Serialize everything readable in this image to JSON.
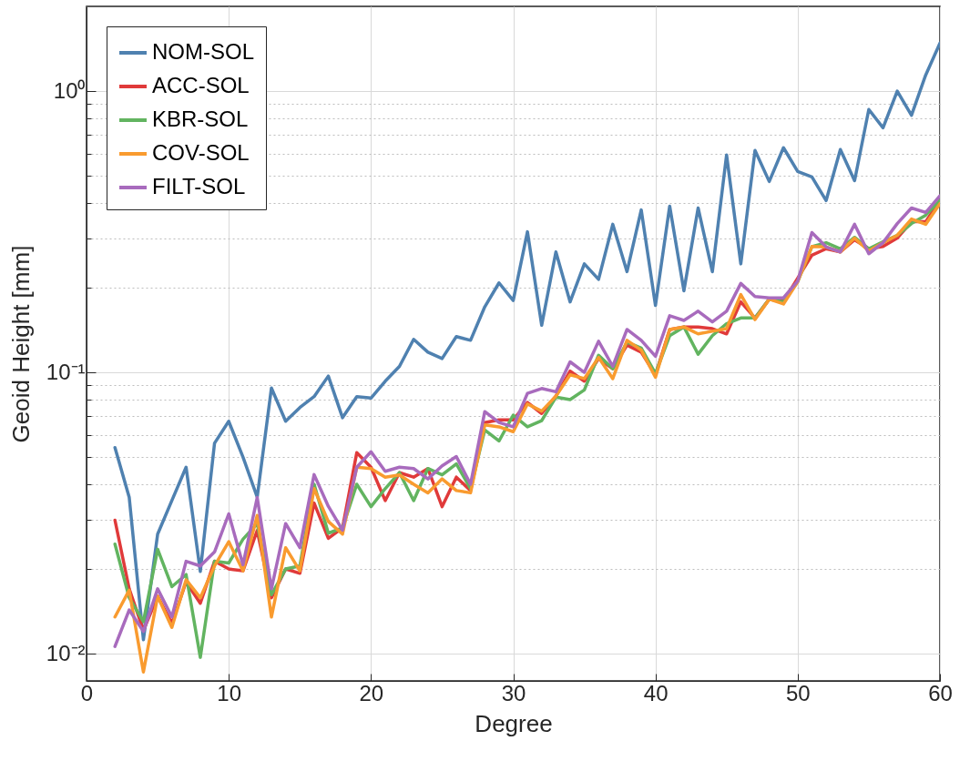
{
  "chart_data": {
    "type": "line",
    "xlabel": "Degree",
    "ylabel": "Geoid Height [mm]",
    "log": true,
    "grid": true,
    "legend": "top left",
    "x": [
      2,
      3,
      4,
      5,
      6,
      7,
      8,
      9,
      10,
      11,
      12,
      13,
      14,
      15,
      16,
      17,
      18,
      19,
      20,
      21,
      22,
      23,
      24,
      25,
      26,
      27,
      28,
      29,
      30,
      31,
      32,
      33,
      34,
      35,
      36,
      37,
      38,
      39,
      40,
      41,
      42,
      43,
      44,
      45,
      46,
      47,
      48,
      49,
      50,
      51,
      52,
      53,
      54,
      55,
      56,
      57,
      58,
      59,
      60
    ],
    "xlim": [
      0,
      60
    ],
    "xticks": [
      0,
      10,
      20,
      30,
      40,
      50,
      60
    ],
    "ylim": [
      0.008,
      2
    ],
    "yticks": [
      {
        "value": 0.01,
        "label": "10⁻²"
      },
      {
        "value": 0.02,
        "label": null
      },
      {
        "value": 0.03,
        "label": null
      },
      {
        "value": 0.04,
        "label": null
      },
      {
        "value": 0.05,
        "label": null
      },
      {
        "value": 0.06,
        "label": null
      },
      {
        "value": 0.07,
        "label": null
      },
      {
        "value": 0.08,
        "label": null
      },
      {
        "value": 0.09,
        "label": null
      },
      {
        "value": 0.1,
        "label": "10⁻¹"
      },
      {
        "value": 0.2,
        "label": null
      },
      {
        "value": 0.3,
        "label": null
      },
      {
        "value": 0.4,
        "label": null
      },
      {
        "value": 0.5,
        "label": null
      },
      {
        "value": 0.6,
        "label": null
      },
      {
        "value": 0.7,
        "label": null
      },
      {
        "value": 0.8,
        "label": null
      },
      {
        "value": 0.9,
        "label": null
      },
      {
        "value": 1,
        "label": "10⁰"
      }
    ],
    "series": [
      {
        "name": "NOM-SOL",
        "color": "#4f81b0",
        "values": [
          0.054,
          0.036,
          0.0112,
          0.0266,
          0.035,
          0.046,
          0.0196,
          0.056,
          0.067,
          0.05,
          0.036,
          0.088,
          0.067,
          0.075,
          0.082,
          0.097,
          0.069,
          0.082,
          0.081,
          0.093,
          0.105,
          0.131,
          0.118,
          0.112,
          0.134,
          0.13,
          0.171,
          0.208,
          0.18,
          0.316,
          0.147,
          0.268,
          0.178,
          0.243,
          0.214,
          0.336,
          0.228,
          0.378,
          0.173,
          0.39,
          0.195,
          0.384,
          0.228,
          0.593,
          0.243,
          0.615,
          0.477,
          0.629,
          0.518,
          0.495,
          0.408,
          0.62,
          0.48,
          0.86,
          0.74,
          1.0,
          0.82,
          1.14,
          1.48
        ]
      },
      {
        "name": "ACC-SOL",
        "color": "#e03a3a",
        "values": [
          0.0298,
          0.017,
          0.0121,
          0.016,
          0.0128,
          0.018,
          0.0151,
          0.0213,
          0.02,
          0.0197,
          0.0274,
          0.0158,
          0.02,
          0.0193,
          0.0343,
          0.0257,
          0.028,
          0.0518,
          0.046,
          0.035,
          0.044,
          0.0424,
          0.0455,
          0.0333,
          0.0424,
          0.038,
          0.0663,
          0.0678,
          0.0678,
          0.0781,
          0.0714,
          0.0823,
          0.101,
          0.093,
          0.112,
          0.103,
          0.125,
          0.118,
          0.098,
          0.142,
          0.145,
          0.145,
          0.143,
          0.137,
          0.178,
          0.156,
          0.182,
          0.179,
          0.216,
          0.261,
          0.275,
          0.268,
          0.296,
          0.275,
          0.28,
          0.3,
          0.343,
          0.343,
          0.408
        ]
      },
      {
        "name": "KBR-SOL",
        "color": "#62b460",
        "values": [
          0.0245,
          0.0158,
          0.013,
          0.0235,
          0.0173,
          0.0191,
          0.0097,
          0.0213,
          0.021,
          0.0255,
          0.029,
          0.0162,
          0.02,
          0.0205,
          0.04,
          0.0268,
          0.028,
          0.04,
          0.0333,
          0.0386,
          0.044,
          0.035,
          0.0455,
          0.0432,
          0.0473,
          0.0386,
          0.0624,
          0.057,
          0.0704,
          0.064,
          0.0673,
          0.0816,
          0.08,
          0.0866,
          0.115,
          0.103,
          0.128,
          0.122,
          0.099,
          0.135,
          0.145,
          0.116,
          0.135,
          0.149,
          0.156,
          0.156,
          0.182,
          0.178,
          0.21,
          0.28,
          0.289,
          0.275,
          0.302,
          0.275,
          0.291,
          0.307,
          0.338,
          0.362,
          0.408
        ]
      },
      {
        "name": "COV-SOL",
        "color": "#f99b2f",
        "values": [
          0.0135,
          0.0168,
          0.0086,
          0.016,
          0.0124,
          0.0183,
          0.0158,
          0.0205,
          0.025,
          0.0197,
          0.031,
          0.0135,
          0.0238,
          0.0197,
          0.0386,
          0.0295,
          0.0266,
          0.046,
          0.0455,
          0.0424,
          0.0432,
          0.04,
          0.0373,
          0.0418,
          0.038,
          0.0373,
          0.065,
          0.064,
          0.0615,
          0.0772,
          0.0728,
          0.0823,
          0.098,
          0.095,
          0.113,
          0.095,
          0.13,
          0.12,
          0.096,
          0.142,
          0.145,
          0.137,
          0.14,
          0.143,
          0.189,
          0.154,
          0.182,
          0.175,
          0.21,
          0.28,
          0.279,
          0.268,
          0.3,
          0.27,
          0.289,
          0.307,
          0.351,
          0.336,
          0.398
        ]
      },
      {
        "name": "FILT-SOL",
        "color": "#a86bbd",
        "values": [
          0.0106,
          0.0143,
          0.012,
          0.017,
          0.0135,
          0.0213,
          0.0205,
          0.023,
          0.0314,
          0.0207,
          0.0359,
          0.017,
          0.029,
          0.0238,
          0.0433,
          0.0334,
          0.0275,
          0.046,
          0.0522,
          0.0445,
          0.046,
          0.0455,
          0.0418,
          0.0465,
          0.0502,
          0.04,
          0.0725,
          0.0663,
          0.064,
          0.0842,
          0.0876,
          0.0853,
          0.109,
          0.1,
          0.129,
          0.105,
          0.142,
          0.13,
          0.114,
          0.159,
          0.153,
          0.165,
          0.151,
          0.165,
          0.207,
          0.186,
          0.184,
          0.184,
          0.211,
          0.314,
          0.279,
          0.268,
          0.336,
          0.264,
          0.289,
          0.338,
          0.384,
          0.37,
          0.424
        ]
      }
    ]
  }
}
